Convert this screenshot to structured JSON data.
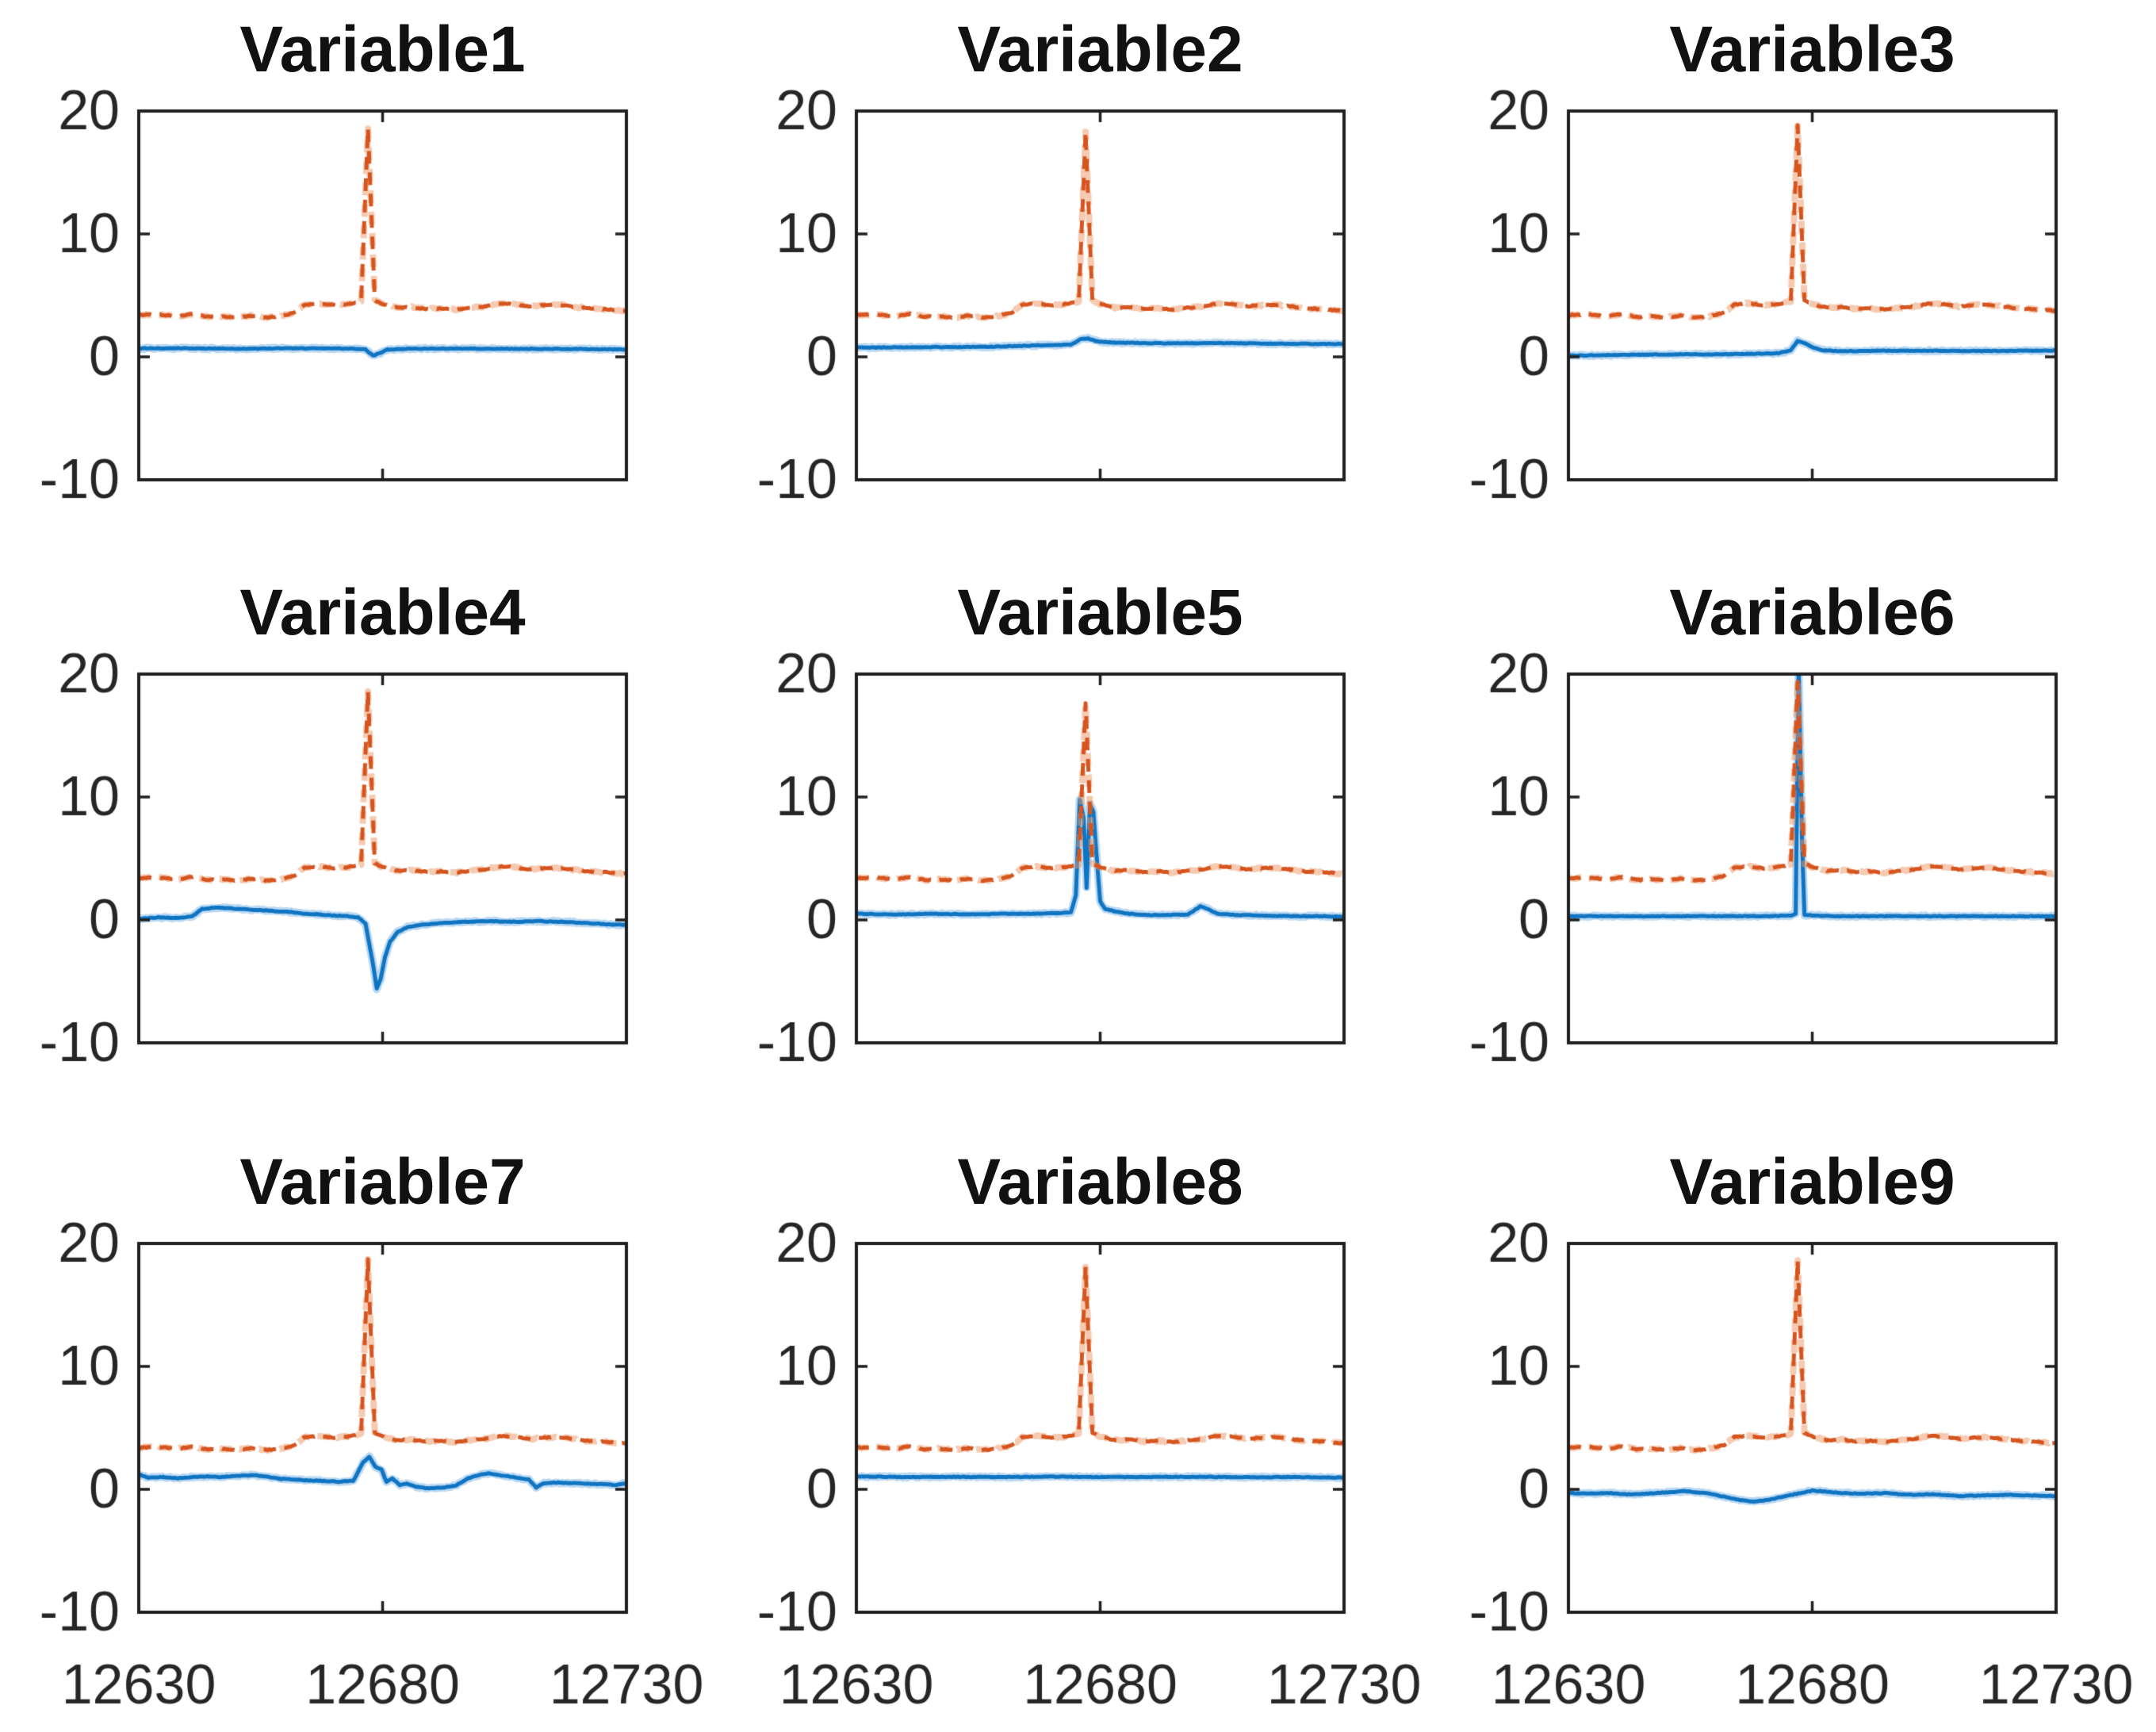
{
  "figure": {
    "background": "#ffffff"
  },
  "chart_data": {
    "type": "line",
    "grid": {
      "rows": 3,
      "cols": 3
    },
    "x_axis": {
      "range": [
        12630,
        12730
      ],
      "ticks": [
        12630,
        12680,
        12730
      ],
      "tick_labels": [
        "12630",
        "12680",
        "12730"
      ],
      "tick_labels_shown": "bottom-row-only"
    },
    "y_axis": {
      "range": [
        -10,
        20
      ],
      "ticks": [
        20,
        10,
        0,
        -10
      ],
      "tick_labels": [
        "20",
        "10",
        "0",
        "-10"
      ],
      "tick_labels_shown": "every-subplot"
    },
    "legend": "none",
    "grid_lines": "off",
    "colors": {
      "statistic_line": "#0f74c2",
      "statistic_halo": "rgba(120,180,230,0.5)",
      "limit_line": "#d6551f",
      "limit_halo": "rgba(235,150,100,0.5)",
      "axis_box": "#1f1f1f",
      "tick_label": "#262626",
      "title": "#111111",
      "background": "#ffffff"
    },
    "line_styles": {
      "statistic": "solid",
      "limit": "dashed"
    },
    "render_hints": {
      "statistic_noise": 0.05,
      "limit_noise": 0.08,
      "halo_noise": 0.13
    },
    "limit_baseline_points": [
      [
        12630,
        3.4
      ],
      [
        12634,
        3.45
      ],
      [
        12638,
        3.3
      ],
      [
        12641,
        3.5
      ],
      [
        12644,
        3.25
      ],
      [
        12647,
        3.3
      ],
      [
        12650,
        3.2
      ],
      [
        12653,
        3.35
      ],
      [
        12656,
        3.2
      ],
      [
        12659,
        3.3
      ],
      [
        12662,
        3.6
      ],
      [
        12664,
        4.25
      ],
      [
        12667,
        4.35
      ],
      [
        12670,
        4.2
      ],
      [
        12673,
        4.3
      ],
      [
        12675.6,
        4.5
      ],
      [
        12677,
        18.5
      ],
      [
        12678.4,
        4.6
      ],
      [
        12680,
        4.3
      ],
      [
        12683,
        4.0
      ],
      [
        12686,
        4.05
      ],
      [
        12689,
        3.9
      ],
      [
        12692,
        3.95
      ],
      [
        12695,
        3.85
      ],
      [
        12698,
        4.0
      ],
      [
        12701,
        4.1
      ],
      [
        12704,
        4.35
      ],
      [
        12707,
        4.3
      ],
      [
        12710,
        4.1
      ],
      [
        12713,
        4.2
      ],
      [
        12716,
        4.25
      ],
      [
        12719,
        4.1
      ],
      [
        12722,
        3.95
      ],
      [
        12725,
        3.9
      ],
      [
        12728,
        3.8
      ],
      [
        12730,
        3.75
      ]
    ],
    "subplots": [
      {
        "title": "Variable1",
        "limit_peak": 18.6,
        "statistic_points": [
          [
            12630,
            0.7
          ],
          [
            12640,
            0.7
          ],
          [
            12650,
            0.65
          ],
          [
            12660,
            0.7
          ],
          [
            12670,
            0.68
          ],
          [
            12675,
            0.65
          ],
          [
            12676.5,
            0.6
          ],
          [
            12678,
            0.1
          ],
          [
            12679.5,
            0.3
          ],
          [
            12681,
            0.6
          ],
          [
            12685,
            0.65
          ],
          [
            12695,
            0.68
          ],
          [
            12705,
            0.65
          ],
          [
            12715,
            0.65
          ],
          [
            12725,
            0.62
          ],
          [
            12730,
            0.6
          ]
        ]
      },
      {
        "title": "Variable2",
        "limit_peak": 18.3,
        "statistic_points": [
          [
            12630,
            0.75
          ],
          [
            12640,
            0.78
          ],
          [
            12650,
            0.8
          ],
          [
            12658,
            0.82
          ],
          [
            12664,
            0.9
          ],
          [
            12670,
            0.95
          ],
          [
            12674,
            1.0
          ],
          [
            12676,
            1.45
          ],
          [
            12677.5,
            1.5
          ],
          [
            12679,
            1.3
          ],
          [
            12681,
            1.2
          ],
          [
            12685,
            1.15
          ],
          [
            12695,
            1.1
          ],
          [
            12705,
            1.12
          ],
          [
            12715,
            1.08
          ],
          [
            12725,
            1.05
          ],
          [
            12730,
            1.05
          ]
        ]
      },
      {
        "title": "Variable3",
        "limit_peak": 18.8,
        "statistic_points": [
          [
            12630,
            0.1
          ],
          [
            12640,
            0.15
          ],
          [
            12650,
            0.2
          ],
          [
            12660,
            0.2
          ],
          [
            12668,
            0.25
          ],
          [
            12673,
            0.3
          ],
          [
            12675.5,
            0.5
          ],
          [
            12677,
            1.3
          ],
          [
            12678.5,
            1.1
          ],
          [
            12680,
            0.8
          ],
          [
            12682,
            0.55
          ],
          [
            12686,
            0.45
          ],
          [
            12695,
            0.5
          ],
          [
            12705,
            0.5
          ],
          [
            12715,
            0.48
          ],
          [
            12725,
            0.5
          ],
          [
            12730,
            0.52
          ]
        ]
      },
      {
        "title": "Variable4",
        "limit_peak": 18.6,
        "statistic_points": [
          [
            12630,
            0.1
          ],
          [
            12634,
            0.2
          ],
          [
            12638,
            0.15
          ],
          [
            12641,
            0.3
          ],
          [
            12643,
            0.9
          ],
          [
            12646,
            1.0
          ],
          [
            12649,
            0.95
          ],
          [
            12652,
            0.85
          ],
          [
            12655,
            0.8
          ],
          [
            12658,
            0.7
          ],
          [
            12661,
            0.65
          ],
          [
            12664,
            0.5
          ],
          [
            12667,
            0.45
          ],
          [
            12670,
            0.35
          ],
          [
            12673,
            0.3
          ],
          [
            12675,
            0.2
          ],
          [
            12676.5,
            -0.3
          ],
          [
            12678,
            -3.5
          ],
          [
            12678.8,
            -5.6
          ],
          [
            12679.6,
            -4.8
          ],
          [
            12680.5,
            -3.0
          ],
          [
            12681.5,
            -1.8
          ],
          [
            12683,
            -1.0
          ],
          [
            12685,
            -0.6
          ],
          [
            12688,
            -0.4
          ],
          [
            12692,
            -0.25
          ],
          [
            12697,
            -0.15
          ],
          [
            12702,
            -0.1
          ],
          [
            12707,
            -0.15
          ],
          [
            12712,
            -0.1
          ],
          [
            12717,
            -0.15
          ],
          [
            12722,
            -0.25
          ],
          [
            12726,
            -0.35
          ],
          [
            12730,
            -0.4
          ]
        ]
      },
      {
        "title": "Variable5",
        "limit_peak": 17.6,
        "statistic_points": [
          [
            12630,
            0.5
          ],
          [
            12638,
            0.45
          ],
          [
            12646,
            0.5
          ],
          [
            12654,
            0.45
          ],
          [
            12660,
            0.5
          ],
          [
            12666,
            0.5
          ],
          [
            12671,
            0.55
          ],
          [
            12674,
            0.6
          ],
          [
            12675,
            2.0
          ],
          [
            12675.8,
            9.8
          ],
          [
            12676.6,
            8.3
          ],
          [
            12677.2,
            2.6
          ],
          [
            12677.9,
            9.4
          ],
          [
            12678.6,
            8.8
          ],
          [
            12679.3,
            5.0
          ],
          [
            12680,
            1.5
          ],
          [
            12681,
            0.9
          ],
          [
            12683,
            0.7
          ],
          [
            12686,
            0.5
          ],
          [
            12690,
            0.4
          ],
          [
            12694,
            0.4
          ],
          [
            12698,
            0.45
          ],
          [
            12700.5,
            1.1
          ],
          [
            12702,
            0.9
          ],
          [
            12704,
            0.5
          ],
          [
            12708,
            0.4
          ],
          [
            12714,
            0.35
          ],
          [
            12720,
            0.3
          ],
          [
            12726,
            0.3
          ],
          [
            12730,
            0.25
          ]
        ]
      },
      {
        "title": "Variable6",
        "limit_peak": 19.4,
        "statistic_points": [
          [
            12630,
            0.3
          ],
          [
            12640,
            0.3
          ],
          [
            12650,
            0.3
          ],
          [
            12660,
            0.3
          ],
          [
            12670,
            0.3
          ],
          [
            12675.5,
            0.35
          ],
          [
            12676.6,
            0.5
          ],
          [
            12677.2,
            20.8
          ],
          [
            12677.9,
            6.5
          ],
          [
            12678.4,
            0.4
          ],
          [
            12685,
            0.3
          ],
          [
            12695,
            0.3
          ],
          [
            12705,
            0.3
          ],
          [
            12715,
            0.3
          ],
          [
            12725,
            0.3
          ],
          [
            12730,
            0.3
          ]
        ]
      },
      {
        "title": "Variable7",
        "limit_peak": 18.7,
        "statistic_points": [
          [
            12630,
            1.2
          ],
          [
            12632,
            0.95
          ],
          [
            12635,
            1.0
          ],
          [
            12638,
            0.9
          ],
          [
            12641,
            1.0
          ],
          [
            12644,
            1.05
          ],
          [
            12647,
            1.0
          ],
          [
            12650,
            1.1
          ],
          [
            12653,
            1.15
          ],
          [
            12656,
            1.05
          ],
          [
            12659,
            0.85
          ],
          [
            12662,
            0.8
          ],
          [
            12665,
            0.72
          ],
          [
            12668,
            0.68
          ],
          [
            12671,
            0.62
          ],
          [
            12674,
            0.7
          ],
          [
            12676,
            2.2
          ],
          [
            12677.3,
            2.65
          ],
          [
            12678.5,
            1.85
          ],
          [
            12679.8,
            1.6
          ],
          [
            12680.8,
            0.6
          ],
          [
            12682,
            0.9
          ],
          [
            12683.5,
            0.35
          ],
          [
            12685,
            0.45
          ],
          [
            12687,
            0.2
          ],
          [
            12689,
            0.1
          ],
          [
            12692,
            0.12
          ],
          [
            12695,
            0.3
          ],
          [
            12697.5,
            0.9
          ],
          [
            12700,
            1.2
          ],
          [
            12702,
            1.3
          ],
          [
            12704,
            1.15
          ],
          [
            12706,
            1.05
          ],
          [
            12708,
            0.9
          ],
          [
            12710,
            0.8
          ],
          [
            12711.5,
            0.15
          ],
          [
            12713,
            0.5
          ],
          [
            12716,
            0.55
          ],
          [
            12719,
            0.5
          ],
          [
            12722,
            0.45
          ],
          [
            12725,
            0.42
          ],
          [
            12728,
            0.35
          ],
          [
            12730,
            0.5
          ]
        ]
      },
      {
        "title": "Variable8",
        "limit_peak": 18.1,
        "statistic_points": [
          [
            12630,
            1.05
          ],
          [
            12640,
            1.0
          ],
          [
            12650,
            1.02
          ],
          [
            12660,
            1.0
          ],
          [
            12670,
            1.03
          ],
          [
            12680,
            1.0
          ],
          [
            12690,
            1.0
          ],
          [
            12700,
            1.02
          ],
          [
            12710,
            0.98
          ],
          [
            12720,
            1.0
          ],
          [
            12730,
            0.95
          ]
        ]
      },
      {
        "title": "Variable9",
        "limit_peak": 18.6,
        "statistic_points": [
          [
            12630,
            -0.3
          ],
          [
            12634,
            -0.35
          ],
          [
            12638,
            -0.3
          ],
          [
            12642,
            -0.4
          ],
          [
            12646,
            -0.35
          ],
          [
            12650,
            -0.25
          ],
          [
            12654,
            -0.15
          ],
          [
            12658,
            -0.3
          ],
          [
            12662,
            -0.6
          ],
          [
            12665,
            -0.85
          ],
          [
            12668,
            -1.0
          ],
          [
            12671,
            -0.85
          ],
          [
            12674,
            -0.6
          ],
          [
            12677,
            -0.35
          ],
          [
            12680,
            -0.1
          ],
          [
            12683,
            -0.2
          ],
          [
            12686,
            -0.3
          ],
          [
            12690,
            -0.35
          ],
          [
            12695,
            -0.3
          ],
          [
            12700,
            -0.45
          ],
          [
            12705,
            -0.4
          ],
          [
            12710,
            -0.55
          ],
          [
            12715,
            -0.5
          ],
          [
            12720,
            -0.45
          ],
          [
            12725,
            -0.5
          ],
          [
            12730,
            -0.55
          ]
        ]
      }
    ]
  }
}
